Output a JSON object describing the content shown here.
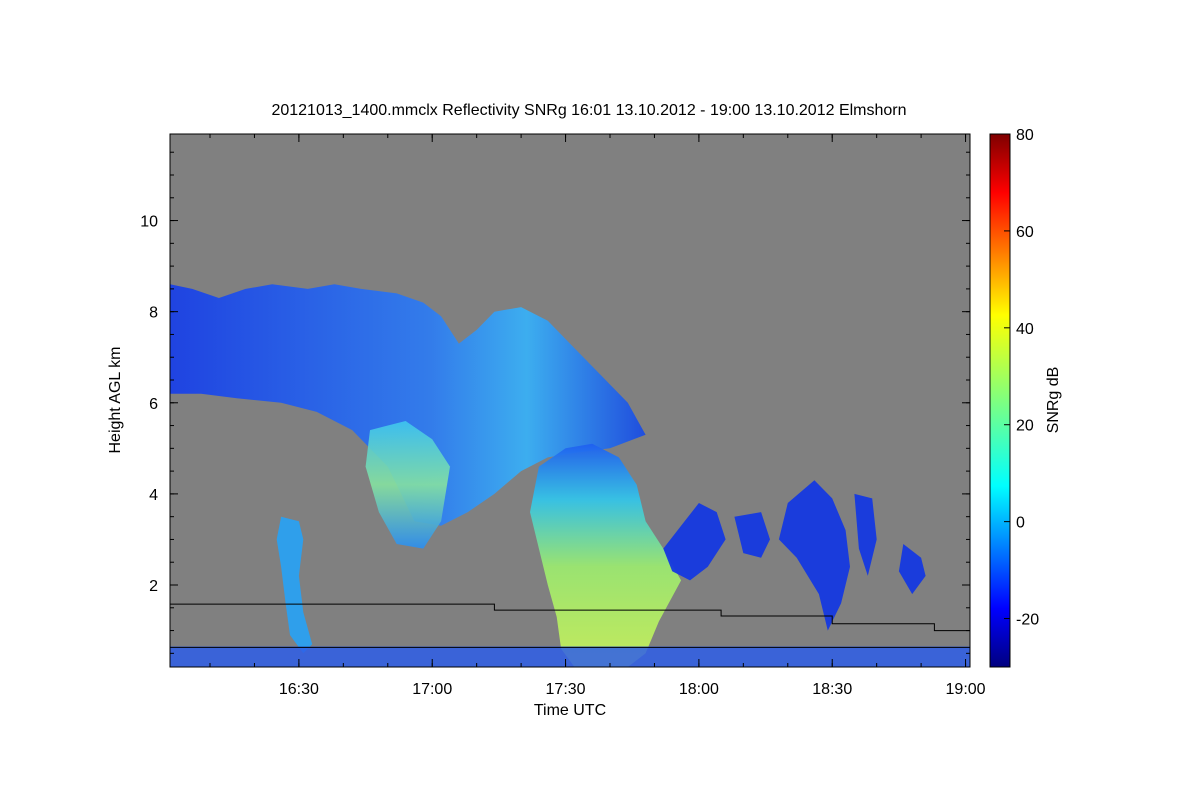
{
  "chart_data": {
    "type": "heatmap",
    "title": "20121013_1400.mmclx Reflectivity SNRg   16:01 13.10.2012 - 19:00 13.10.2012 Elmshorn",
    "xlabel": "Time UTC",
    "ylabel": "Height AGL km",
    "colorbar_label": "SNRg dB",
    "x_ticks": [
      "16:30",
      "17:00",
      "17:30",
      "18:00",
      "18:30",
      "19:00"
    ],
    "x_tick_values_min": [
      990,
      1020,
      1050,
      1080,
      1110,
      1140
    ],
    "xlim_min": [
      961,
      1141
    ],
    "y_ticks": [
      "2",
      "4",
      "6",
      "8",
      "10"
    ],
    "y_tick_values": [
      2,
      4,
      6,
      8,
      10
    ],
    "ylim": [
      0.2,
      11.9
    ],
    "colorbar_ticks": [
      "-20",
      "0",
      "20",
      "40",
      "60",
      "80"
    ],
    "colorbar_tick_values": [
      -20,
      0,
      20,
      40,
      60,
      80
    ],
    "colorbar_range": [
      -30,
      80
    ],
    "grid": false,
    "background_color": "#808080",
    "colormap": "jet",
    "cloud_regions": [
      {
        "name_hint": "upper stratiform layer",
        "t_start_min": 961,
        "t_end_min": 1068,
        "base_km": 6.2,
        "top_km": 8.6,
        "snr_db": -10
      },
      {
        "name_hint": "main precipitation",
        "t_start_min": 1045,
        "t_end_min": 1070,
        "base_km": 0.2,
        "top_km": 5.1,
        "snr_db": 18
      },
      {
        "name_hint": "fall streak",
        "t_start_min": 1006,
        "t_end_min": 1024,
        "base_km": 2.7,
        "top_km": 5.4,
        "snr_db": 10
      },
      {
        "name_hint": "shallow cell",
        "t_start_min": 985,
        "t_end_min": 992,
        "base_km": 0.5,
        "top_km": 3.5,
        "snr_db": 2
      },
      {
        "name_hint": "trailing cells",
        "t_start_min": 1072,
        "t_end_min": 1135,
        "base_km": 1.0,
        "top_km": 4.4,
        "snr_db": -12
      }
    ],
    "boundary_line_1_km": [
      {
        "t_min": 961,
        "h_km": 1.58
      },
      {
        "t_min": 1034,
        "h_km": 1.45
      },
      {
        "t_min": 1085,
        "h_km": 1.32
      },
      {
        "t_min": 1110,
        "h_km": 1.15
      },
      {
        "t_min": 1133,
        "h_km": 1.0
      }
    ],
    "boundary_line_2_km": 0.63
  }
}
